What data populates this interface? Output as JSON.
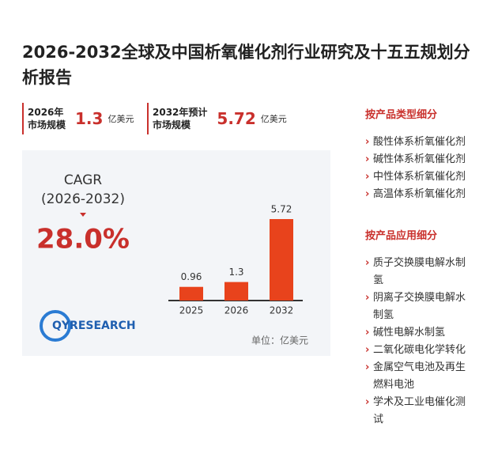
{
  "header": {
    "title": "2026-2032全球及中国析氧催化剂行业研究及十五五规划分析报告"
  },
  "stats": [
    {
      "label_lines": [
        "2026年",
        "市场规模"
      ],
      "value": "1.3",
      "unit": "亿美元"
    },
    {
      "label_lines": [
        "2032年预计",
        "市场规模"
      ],
      "value": "5.72",
      "unit": "亿美元"
    }
  ],
  "cagr": {
    "label": "CAGR",
    "period": "(2026-2032)",
    "value": "28.0%"
  },
  "chart_data": {
    "type": "bar",
    "categories": [
      "2025",
      "2026",
      "2032"
    ],
    "values": [
      0.96,
      1.3,
      5.72
    ],
    "color": "#e8431c",
    "unit_label": "单位：亿美元"
  },
  "logo": "QYRESEARCH",
  "sidebar": {
    "type_heading": "按产品类型细分",
    "type_items": [
      "酸性体系析氧催化剂",
      "碱性体系析氧催化剂",
      "中性体系析氧催化剂",
      "高温体系析氧催化剂"
    ],
    "application_heading": "按产品应用细分",
    "application_items": [
      "质子交换膜电解水制氢",
      "阴离子交换膜电解水制氢",
      "碱性电解水制氢",
      "二氧化碳电化学转化",
      "金属空气电池及再生燃料电池",
      "学术及工业电催化测试"
    ]
  }
}
